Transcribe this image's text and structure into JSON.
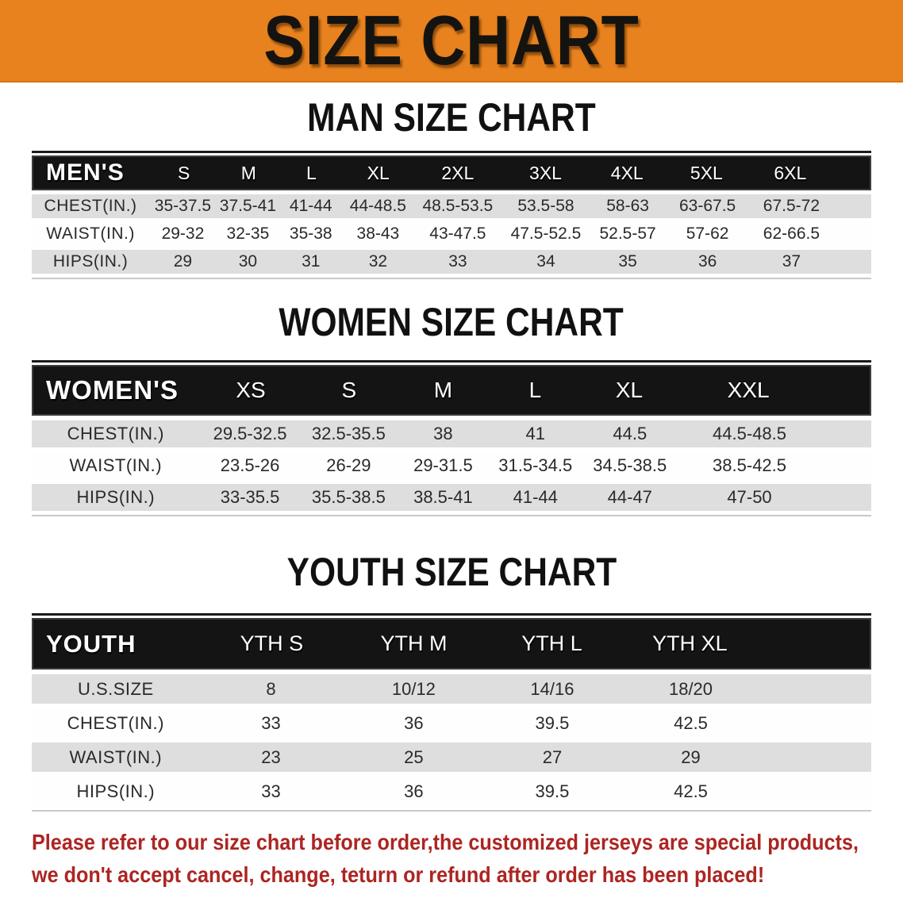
{
  "banner": {
    "title": "SIZE CHART"
  },
  "colors": {
    "banner_bg": "#E8821E",
    "band_bg": "#141414",
    "row_gray": "#DEDEDE",
    "row_white": "#FEFEFE",
    "disclaimer_red": "#AC2522"
  },
  "men_chart": {
    "title": "MAN SIZE CHART",
    "table": {
      "label": "MEN'S",
      "sizes": [
        "S",
        "M",
        "L",
        "XL",
        "2XL",
        "3XL",
        "4XL",
        "5XL",
        "6XL"
      ],
      "rows": [
        {
          "label": "CHEST(IN.)",
          "values": [
            "35-37.5",
            "37.5-41",
            "41-44",
            "44-48.5",
            "48.5-53.5",
            "53.5-58",
            "58-63",
            "63-67.5",
            "67.5-72"
          ]
        },
        {
          "label": "WAIST(IN.)",
          "values": [
            "29-32",
            "32-35",
            "35-38",
            "38-43",
            "43-47.5",
            "47.5-52.5",
            "52.5-57",
            "57-62",
            "62-66.5"
          ]
        },
        {
          "label": "HIPS(IN.)",
          "values": [
            "29",
            "30",
            "31",
            "32",
            "33",
            "34",
            "35",
            "36",
            "37"
          ]
        }
      ]
    }
  },
  "women_chart": {
    "title": "WOMEN SIZE CHART",
    "table": {
      "label": "WOMEN'S",
      "sizes": [
        "XS",
        "S",
        "M",
        "L",
        "XL",
        "XXL"
      ],
      "rows": [
        {
          "label": "CHEST(IN.)",
          "values": [
            "29.5-32.5",
            "32.5-35.5",
            "38",
            "41",
            "44.5",
            "44.5-48.5"
          ]
        },
        {
          "label": "WAIST(IN.)",
          "values": [
            "23.5-26",
            "26-29",
            "29-31.5",
            "31.5-34.5",
            "34.5-38.5",
            "38.5-42.5"
          ]
        },
        {
          "label": "HIPS(IN.)",
          "values": [
            "33-35.5",
            "35.5-38.5",
            "38.5-41",
            "41-44",
            "44-47",
            "47-50"
          ]
        }
      ]
    }
  },
  "youth_chart": {
    "title": "YOUTH SIZE CHART",
    "table": {
      "label": "YOUTH",
      "sizes": [
        "YTH S",
        "YTH M",
        "YTH L",
        "YTH XL"
      ],
      "rows": [
        {
          "label": "U.S.SIZE",
          "values": [
            "8",
            "10/12",
            "14/16",
            "18/20"
          ]
        },
        {
          "label": "CHEST(IN.)",
          "values": [
            "33",
            "36",
            "39.5",
            "42.5"
          ]
        },
        {
          "label": "WAIST(IN.)",
          "values": [
            "23",
            "25",
            "27",
            "29"
          ]
        },
        {
          "label": "HIPS(IN.)",
          "values": [
            "33",
            "36",
            "39.5",
            "42.5"
          ]
        }
      ]
    }
  },
  "disclaimer": {
    "line1": "Please refer to our size chart before order,the customized jerseys are special products,",
    "line2": "we don't accept cancel, change, teturn or refund after order has been placed!"
  }
}
